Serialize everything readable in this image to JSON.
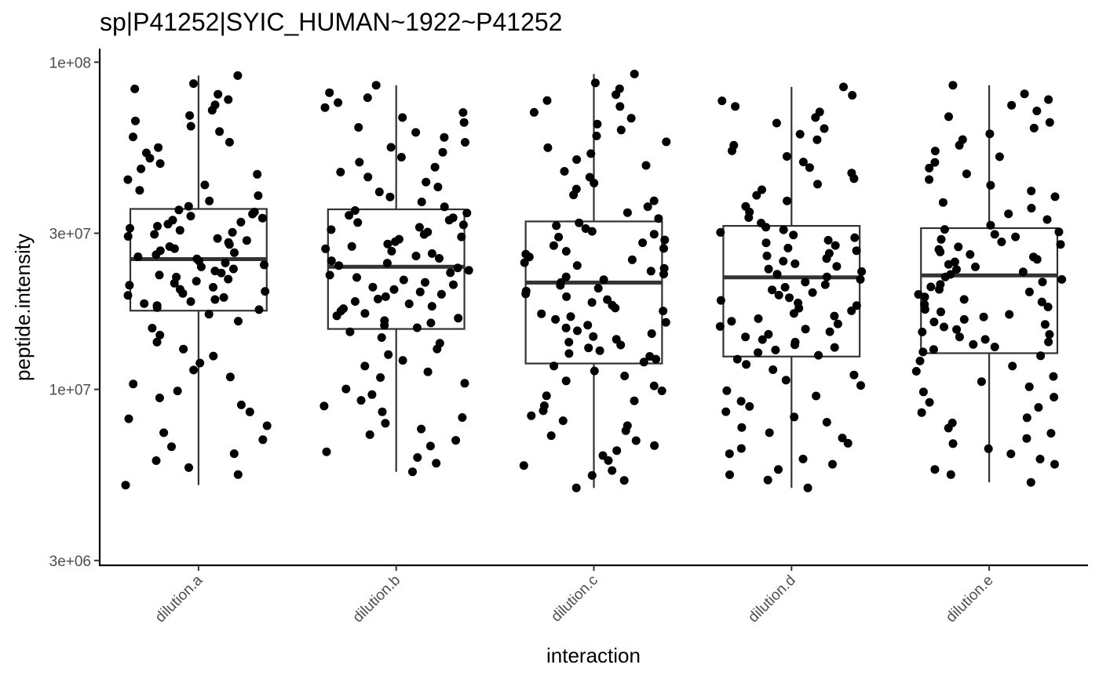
{
  "chart_data": {
    "type": "box",
    "title": "sp|P41252|SYIC_HUMAN~1922~P41252",
    "xlabel": "interaction",
    "ylabel": "peptide.intensity",
    "y_scale": "log10",
    "ylim": [
      2900000,
      110000000
    ],
    "y_ticks": [
      {
        "value": 3000000,
        "label": "3e+06"
      },
      {
        "value": 10000000,
        "label": "1e+07"
      },
      {
        "value": 30000000,
        "label": "3e+07"
      },
      {
        "value": 100000000,
        "label": "1e+08"
      }
    ],
    "categories": [
      "dilution.a",
      "dilution.b",
      "dilution.c",
      "dilution.d",
      "dilution.e"
    ],
    "boxes": [
      {
        "category": "dilution.a",
        "min": 5100000,
        "q1": 17400000,
        "median": 25000000,
        "q3": 35600000,
        "max": 91000000
      },
      {
        "category": "dilution.b",
        "min": 5600000,
        "q1": 15300000,
        "median": 23700000,
        "q3": 35500000,
        "max": 85000000
      },
      {
        "category": "dilution.c",
        "min": 5000000,
        "q1": 12000000,
        "median": 21200000,
        "q3": 32600000,
        "max": 92000000
      },
      {
        "category": "dilution.d",
        "min": 5000000,
        "q1": 12600000,
        "median": 22000000,
        "q3": 31600000,
        "max": 84000000
      },
      {
        "category": "dilution.e",
        "min": 5200000,
        "q1": 12900000,
        "median": 22300000,
        "q3": 31100000,
        "max": 85000000
      }
    ],
    "points_per_group": 100,
    "point_color": "#000000"
  }
}
